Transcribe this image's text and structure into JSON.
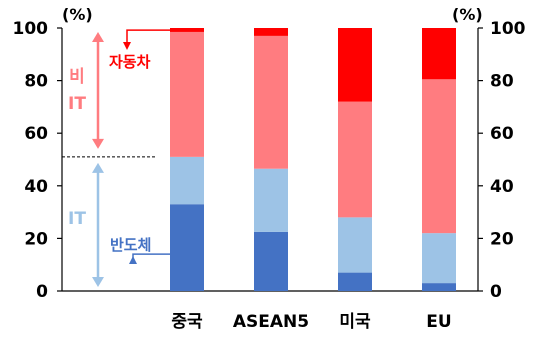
{
  "chart_data": {
    "type": "bar",
    "stacked": true,
    "categories": [
      "중국",
      "ASEAN5",
      "미국",
      "EU"
    ],
    "series": [
      {
        "name": "반도체",
        "color": "#4472C4",
        "values": [
          33,
          22.5,
          7,
          3
        ]
      },
      {
        "name": "IT (other)",
        "color": "#9DC3E6",
        "values": [
          18,
          24,
          21,
          19
        ]
      },
      {
        "name": "비 IT (other)",
        "color": "#FF7C80",
        "values": [
          47.5,
          50.5,
          44,
          58.5
        ]
      },
      {
        "name": "자동차",
        "color": "#FF0000",
        "values": [
          1.5,
          3,
          28,
          19.5
        ]
      }
    ],
    "ylim": [
      0,
      100
    ],
    "yticks": [
      0,
      20,
      40,
      60,
      80,
      100
    ],
    "left_unit": "(%)",
    "right_unit": "(%)",
    "grid": false,
    "annotations": {
      "non_it": {
        "line1": "비",
        "line2": "IT",
        "color": "#FF7C80",
        "range": [
          50,
          100
        ]
      },
      "it": {
        "label": "IT",
        "color": "#9DC3E6",
        "range": [
          0,
          50
        ]
      },
      "auto": {
        "label": "자동차",
        "color": "#FF0000"
      },
      "semi": {
        "label": "반도체",
        "color": "#4472C4"
      },
      "divider_value": 51
    }
  }
}
